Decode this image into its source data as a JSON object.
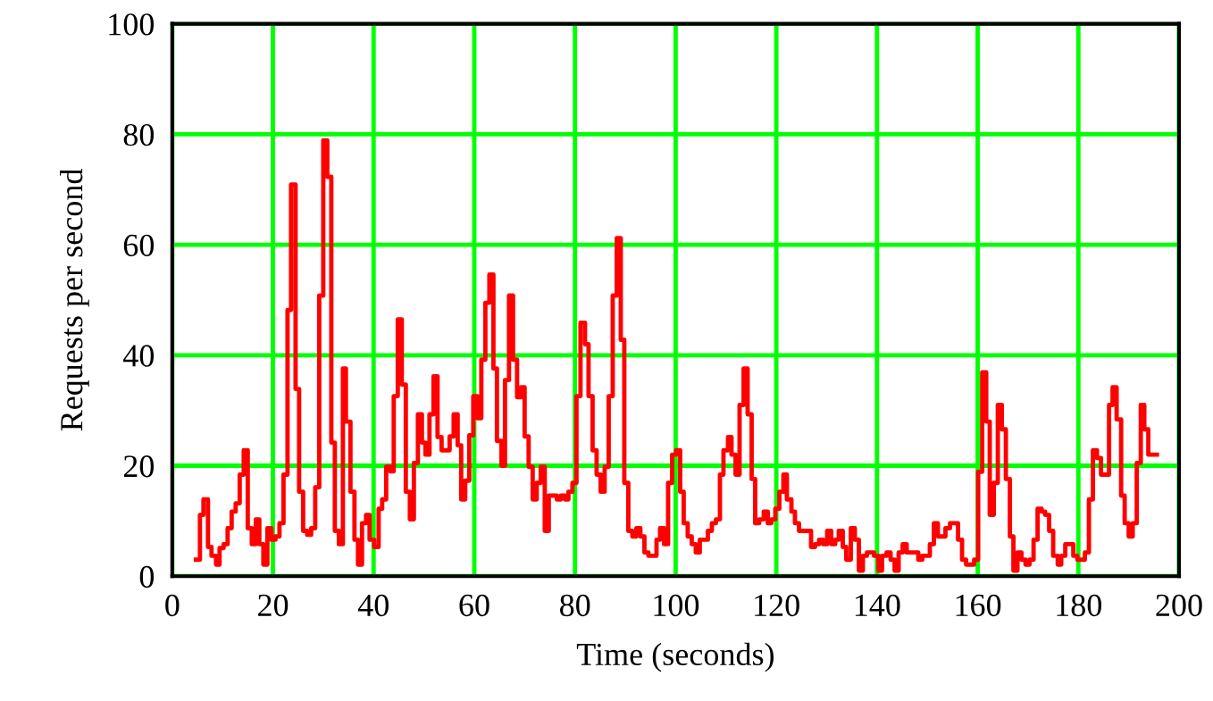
{
  "chart_data": {
    "type": "step",
    "xlabel": "Time (seconds)",
    "ylabel": "Requests per second",
    "xlim": [
      0,
      200
    ],
    "ylim": [
      0,
      100
    ],
    "xticks": [
      0,
      20,
      40,
      60,
      80,
      100,
      120,
      140,
      160,
      180,
      200
    ],
    "yticks": [
      0,
      20,
      40,
      60,
      80,
      100
    ],
    "grid": true,
    "series": [
      {
        "color": "#ff0000",
        "x": [
          4.7,
          5.5,
          6.2,
          7.1,
          7.8,
          8.7,
          9.4,
          10.2,
          11.0,
          11.8,
          12.6,
          13.4,
          14.2,
          15.0,
          15.8,
          16.6,
          17.3,
          18.1,
          18.9,
          19.7,
          20.5,
          21.3,
          22.1,
          22.9,
          23.6,
          24.5,
          25.2,
          26.0,
          26.8,
          27.6,
          28.4,
          29.2,
          30.0,
          30.8,
          31.6,
          32.3,
          33.1,
          33.9,
          34.5,
          35.4,
          36.2,
          36.9,
          37.7,
          38.5,
          39.2,
          40.1,
          41.0,
          41.7,
          42.5,
          43.3,
          44.0,
          44.8,
          45.6,
          46.4,
          47.2,
          48.0,
          48.8,
          49.6,
          50.3,
          51.1,
          51.9,
          52.7,
          53.5,
          54.3,
          55.1,
          55.9,
          56.7,
          57.4,
          58.2,
          59.0,
          59.8,
          60.6,
          61.4,
          62.2,
          63.0,
          63.8,
          64.5,
          65.4,
          66.1,
          66.9,
          67.7,
          68.5,
          69.3,
          70.0,
          70.8,
          71.6,
          72.4,
          73.2,
          74.0,
          74.8,
          75.5,
          76.4,
          77.2,
          78.0,
          78.7,
          79.5,
          80.3,
          81.1,
          82.0,
          82.7,
          83.5,
          84.3,
          85.1,
          85.9,
          86.7,
          87.5,
          88.3,
          89.1,
          89.8,
          90.6,
          91.4,
          92.2,
          93.0,
          93.8,
          94.6,
          95.4,
          96.2,
          96.9,
          97.7,
          98.5,
          99.3,
          100.1,
          100.9,
          101.6,
          102.4,
          103.2,
          104.0,
          104.8,
          105.6,
          106.4,
          107.2,
          108.0,
          108.8,
          109.5,
          110.4,
          111.1,
          111.9,
          112.7,
          113.5,
          114.3,
          115.1,
          115.8,
          116.6,
          117.5,
          118.3,
          119.0,
          119.8,
          120.6,
          121.4,
          122.1,
          123.0,
          123.7,
          124.5,
          125.3,
          126.1,
          126.9,
          127.7,
          128.5,
          129.3,
          130.1,
          130.9,
          131.7,
          132.4,
          133.2,
          133.9,
          134.8,
          135.6,
          136.4,
          137.2,
          138.0,
          138.8,
          139.4,
          140.3,
          141.0,
          141.9,
          142.7,
          143.5,
          144.3,
          145.1,
          145.9,
          146.7,
          147.4,
          148.2,
          149.0,
          149.8,
          150.5,
          151.3,
          152.1,
          152.9,
          153.6,
          154.5,
          155.3,
          156.1,
          156.9,
          157.7,
          158.5,
          159.3,
          160.1,
          160.9,
          161.7,
          162.4,
          163.2,
          164.0,
          164.8,
          165.6,
          166.4,
          167.1,
          167.9,
          168.7,
          169.5,
          170.3,
          171.1,
          171.9,
          172.7,
          173.4,
          174.2,
          175.0,
          175.9,
          176.6,
          177.4,
          178.2,
          179.0,
          179.8,
          180.5,
          181.3,
          182.1,
          182.9,
          183.7,
          184.5,
          185.3,
          186.1,
          186.8,
          187.6,
          188.5,
          189.2,
          190.0,
          190.8,
          191.6,
          192.4,
          193.1,
          193.9,
          194.8,
          195.6
        ],
        "values": [
          3.0,
          11.1,
          13.9,
          5.3,
          3.7,
          2.1,
          5.1,
          5.8,
          8.7,
          11.7,
          13.2,
          18.4,
          22.8,
          8.7,
          5.8,
          10.3,
          5.8,
          2.1,
          8.7,
          6.6,
          7.2,
          9.6,
          18.4,
          48.2,
          70.9,
          33.9,
          15.3,
          8.2,
          7.5,
          8.7,
          16.1,
          50.8,
          78.9,
          72.3,
          24.2,
          8.2,
          5.8,
          37.6,
          28.0,
          15.3,
          6.6,
          2.1,
          9.6,
          11.1,
          6.6,
          5.3,
          12.2,
          13.9,
          19.8,
          19.0,
          32.6,
          46.5,
          34.7,
          15.3,
          10.3,
          20.5,
          29.3,
          24.2,
          22.0,
          29.3,
          36.2,
          25.2,
          22.8,
          22.8,
          25.3,
          29.3,
          23.7,
          13.9,
          17.3,
          25.5,
          32.6,
          28.6,
          39.2,
          49.5,
          54.6,
          37.6,
          24.5,
          20.0,
          35.5,
          50.8,
          39.2,
          32.4,
          34.2,
          25.3,
          19.8,
          13.9,
          16.9,
          19.8,
          8.2,
          14.6,
          14.6,
          13.9,
          14.6,
          13.9,
          15.3,
          16.9,
          32.6,
          45.9,
          42.0,
          32.6,
          22.8,
          18.4,
          15.3,
          19.8,
          32.6,
          50.8,
          61.2,
          42.8,
          16.9,
          8.2,
          7.2,
          8.7,
          7.2,
          4.3,
          3.7,
          3.7,
          6.6,
          8.7,
          5.8,
          16.9,
          22.0,
          22.8,
          15.3,
          9.6,
          7.2,
          5.8,
          4.3,
          6.6,
          6.6,
          8.2,
          9.6,
          10.3,
          18.4,
          22.8,
          25.2,
          22.0,
          18.4,
          31.0,
          37.6,
          29.3,
          17.6,
          9.6,
          10.3,
          11.7,
          9.6,
          10.3,
          12.2,
          15.3,
          18.4,
          13.9,
          11.7,
          9.6,
          8.2,
          8.2,
          8.2,
          5.3,
          5.8,
          6.6,
          5.8,
          8.2,
          5.8,
          6.6,
          8.2,
          5.3,
          3.0,
          8.7,
          6.6,
          1.0,
          3.7,
          4.3,
          4.3,
          3.7,
          1.0,
          3.7,
          4.3,
          3.0,
          1.0,
          4.3,
          5.8,
          4.3,
          4.3,
          4.3,
          3.0,
          3.7,
          3.7,
          5.8,
          9.6,
          7.2,
          7.2,
          8.7,
          9.6,
          9.6,
          6.6,
          3.0,
          2.1,
          2.1,
          3.0,
          18.9,
          36.9,
          28.0,
          11.1,
          16.9,
          31.0,
          26.6,
          17.6,
          7.2,
          1.0,
          4.3,
          3.0,
          2.1,
          3.0,
          6.6,
          12.2,
          11.7,
          11.1,
          8.2,
          3.7,
          2.1,
          3.7,
          5.8,
          5.8,
          3.7,
          3.0,
          3.0,
          4.3,
          13.9,
          22.8,
          21.4,
          18.4,
          18.4,
          31.0,
          34.2,
          28.4,
          14.6,
          9.6,
          7.2,
          9.6,
          20.5,
          31.0,
          26.6,
          22.0,
          22.0,
          22.0
        ]
      }
    ]
  }
}
